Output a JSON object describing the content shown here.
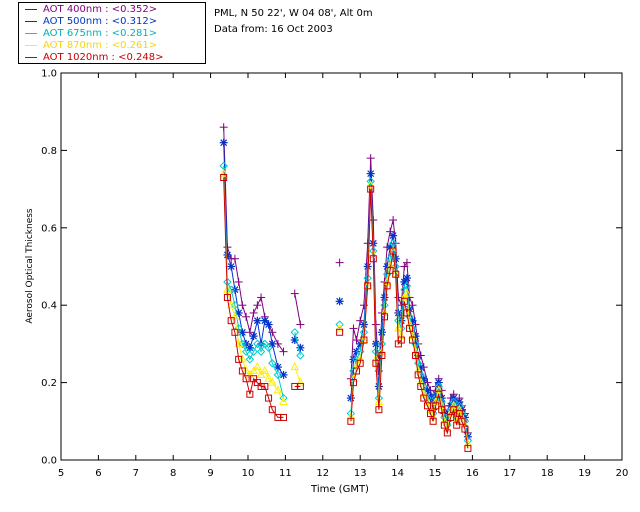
{
  "info": {
    "station": "PML, N 50 22', W 04 08', Alt 0m",
    "date": "Data from: 16 Oct 2003"
  },
  "legend": [
    {
      "label": "AOT  400nm : <0.352>",
      "color": "#800080",
      "marker": "plus"
    },
    {
      "label": "AOT  500nm : <0.312>",
      "color": "#0033cc",
      "marker": "asterisk"
    },
    {
      "label": "AOT  675nm : <0.281>",
      "color": "#00cccc",
      "marker": "diamond"
    },
    {
      "label": "AOT  870nm : <0.261>",
      "color": "#ffee00",
      "marker": "triangle"
    },
    {
      "label": "AOT 1020nm : <0.248>",
      "color": "#cc0000",
      "marker": "square"
    }
  ],
  "chart_data": {
    "type": "line",
    "xlabel": "Time (GMT)",
    "ylabel": "Aerosol Optical Thickness",
    "xlim": [
      5,
      20
    ],
    "ylim": [
      0,
      1
    ],
    "xticks": [
      "5",
      "6",
      "7",
      "8",
      "9",
      "10",
      "11",
      "12",
      "13",
      "14",
      "15",
      "16",
      "17",
      "18",
      "19",
      "20"
    ],
    "yticks": [
      "0.0",
      "0.2",
      "0.4",
      "0.6",
      "0.8",
      "1.0"
    ],
    "segments": [
      [
        9.35,
        9.45,
        9.55,
        9.65,
        9.75,
        9.85,
        9.95,
        10.05,
        10.15,
        10.25,
        10.35,
        10.45,
        10.55,
        10.65,
        10.8,
        10.95
      ],
      [
        11.25,
        11.4
      ],
      [
        12.45
      ],
      [
        12.75,
        12.82,
        12.9,
        13.0,
        13.1,
        13.2,
        13.28,
        13.35,
        13.42,
        13.5,
        13.58,
        13.65,
        13.72,
        13.8,
        13.88,
        13.95,
        14.02,
        14.1,
        14.18,
        14.25,
        14.32,
        14.4,
        14.48,
        14.55,
        14.62,
        14.7,
        14.8,
        14.88,
        14.95,
        15.02,
        15.1,
        15.18,
        15.25,
        15.33,
        15.42,
        15.5,
        15.58,
        15.65,
        15.72,
        15.8,
        15.88
      ]
    ],
    "series": [
      {
        "name": "AOT 400nm",
        "values": [
          [
            0.86,
            0.55,
            0.52,
            0.52,
            0.46,
            0.4,
            0.37,
            0.33,
            0.38,
            0.4,
            0.42,
            0.37,
            0.35,
            0.33,
            0.3,
            0.28
          ],
          [
            0.43,
            0.35
          ],
          [
            0.51
          ],
          [
            0.21,
            0.34,
            0.31,
            0.36,
            0.4,
            0.56,
            0.78,
            0.62,
            0.35,
            0.23,
            0.38,
            0.46,
            0.55,
            0.59,
            0.62,
            0.56,
            0.42,
            0.4,
            0.5,
            0.51,
            0.42,
            0.4,
            0.35,
            0.3,
            0.27,
            0.24,
            0.2,
            0.18,
            0.15,
            0.19,
            0.21,
            0.18,
            0.14,
            0.12,
            0.16,
            0.17,
            0.14,
            0.16,
            0.14,
            0.12,
            0.07
          ]
        ]
      },
      {
        "name": "AOT 500nm",
        "values": [
          [
            0.82,
            0.53,
            0.5,
            0.44,
            0.38,
            0.33,
            0.3,
            0.29,
            0.32,
            0.36,
            0.3,
            0.36,
            0.35,
            0.3,
            0.24,
            0.22
          ],
          [
            0.31,
            0.29
          ],
          [
            0.41
          ],
          [
            0.16,
            0.26,
            0.28,
            0.3,
            0.35,
            0.5,
            0.74,
            0.56,
            0.3,
            0.19,
            0.33,
            0.42,
            0.5,
            0.55,
            0.58,
            0.52,
            0.38,
            0.36,
            0.46,
            0.47,
            0.39,
            0.36,
            0.32,
            0.27,
            0.24,
            0.21,
            0.18,
            0.16,
            0.13,
            0.17,
            0.2,
            0.16,
            0.12,
            0.1,
            0.14,
            0.16,
            0.12,
            0.15,
            0.13,
            0.11,
            0.06
          ]
        ]
      },
      {
        "name": "AOT 675nm",
        "values": [
          [
            0.76,
            0.46,
            0.44,
            0.4,
            0.34,
            0.3,
            0.28,
            0.26,
            0.28,
            0.3,
            0.28,
            0.3,
            0.29,
            0.25,
            0.22,
            0.16
          ],
          [
            0.33,
            0.27
          ],
          [
            0.35
          ],
          [
            0.12,
            0.23,
            0.26,
            0.28,
            0.33,
            0.47,
            0.72,
            0.54,
            0.28,
            0.16,
            0.3,
            0.4,
            0.48,
            0.52,
            0.56,
            0.5,
            0.36,
            0.34,
            0.44,
            0.45,
            0.37,
            0.34,
            0.3,
            0.25,
            0.22,
            0.19,
            0.16,
            0.14,
            0.12,
            0.16,
            0.19,
            0.15,
            0.11,
            0.09,
            0.13,
            0.15,
            0.11,
            0.14,
            0.12,
            0.1,
            0.05
          ]
        ]
      },
      {
        "name": "AOT 870nm",
        "values": [
          [
            0.74,
            0.44,
            0.4,
            0.37,
            0.3,
            0.26,
            0.23,
            0.22,
            0.23,
            0.24,
            0.22,
            0.23,
            0.21,
            0.2,
            0.18,
            0.15
          ],
          [
            0.24,
            0.2
          ],
          [
            0.34
          ],
          [
            0.11,
            0.21,
            0.24,
            0.26,
            0.31,
            0.45,
            0.71,
            0.53,
            0.26,
            0.15,
            0.28,
            0.38,
            0.46,
            0.5,
            0.54,
            0.48,
            0.34,
            0.32,
            0.42,
            0.43,
            0.35,
            0.32,
            0.28,
            0.23,
            0.2,
            0.17,
            0.15,
            0.13,
            0.11,
            0.15,
            0.18,
            0.14,
            0.1,
            0.08,
            0.12,
            0.14,
            0.1,
            0.13,
            0.11,
            0.09,
            0.04
          ]
        ]
      },
      {
        "name": "AOT 1020nm",
        "values": [
          [
            0.73,
            0.42,
            0.36,
            0.33,
            0.26,
            0.23,
            0.21,
            0.17,
            0.21,
            0.2,
            0.19,
            0.19,
            0.16,
            0.13,
            0.11,
            0.11
          ],
          [
            0.19,
            0.19
          ],
          [
            0.33
          ],
          [
            0.1,
            0.2,
            0.23,
            0.25,
            0.31,
            0.45,
            0.7,
            0.52,
            0.25,
            0.13,
            0.27,
            0.37,
            0.45,
            0.49,
            0.54,
            0.48,
            0.3,
            0.31,
            0.41,
            0.38,
            0.34,
            0.31,
            0.27,
            0.22,
            0.19,
            0.16,
            0.14,
            0.12,
            0.1,
            0.14,
            0.17,
            0.13,
            0.09,
            0.07,
            0.11,
            0.13,
            0.09,
            0.12,
            0.1,
            0.08,
            0.03
          ]
        ]
      }
    ]
  }
}
